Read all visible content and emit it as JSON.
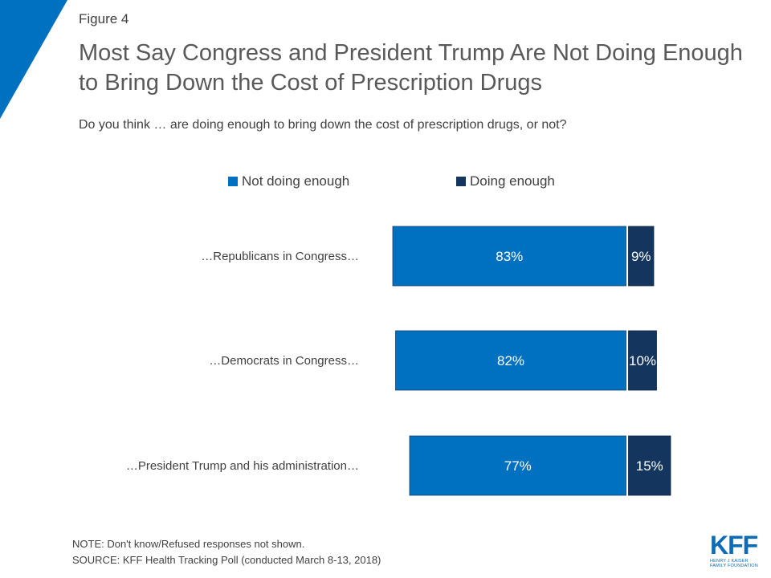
{
  "figure_label": "Figure 4",
  "title": "Most Say Congress and President Trump Are Not Doing Enough to Bring Down the Cost of Prescription Drugs",
  "subtitle": "Do you think … are doing enough to bring down the cost of prescription drugs, or not?",
  "colors": {
    "not_doing_enough": "#0070C0",
    "doing_enough": "#14365E",
    "corner_accent": "#0070C0"
  },
  "chart_data": {
    "type": "bar",
    "orientation": "horizontal",
    "stacked": true,
    "legend_position": "top",
    "categories": [
      "…Republicans in Congress…",
      "…Democrats in Congress…",
      "…President Trump and his administration…"
    ],
    "series": [
      {
        "name": "Not doing enough",
        "values": [
          83,
          82,
          77
        ],
        "labels": [
          "83%",
          "82%",
          "77%"
        ]
      },
      {
        "name": "Doing enough",
        "values": [
          9,
          10,
          15
        ],
        "labels": [
          "9%",
          "10%",
          "15%"
        ]
      }
    ],
    "grid": false
  },
  "note": "NOTE: Don't know/Refused responses not shown.",
  "source": "SOURCE: KFF Health Tracking Poll (conducted March 8-13, 2018)",
  "logo": {
    "mark": "KFF",
    "line1": "HENRY J KAISER",
    "line2": "FAMILY FOUNDATION"
  }
}
